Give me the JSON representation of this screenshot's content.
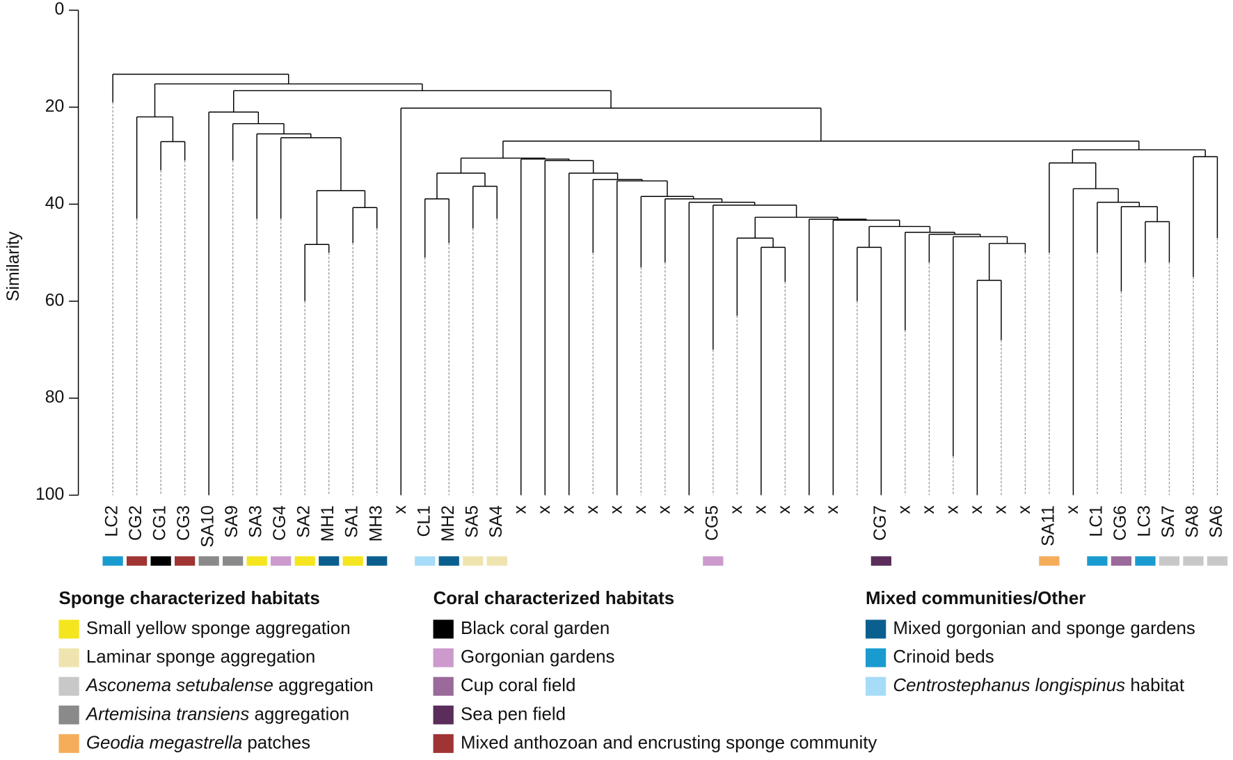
{
  "chart_data": {
    "type": "dendrogram",
    "ylabel": "Similarity",
    "ylim": [
      0,
      100
    ],
    "yticks": [
      0,
      20,
      40,
      60,
      80,
      100
    ],
    "y_reversed": true,
    "leaves": [
      {
        "label": "LC2",
        "color": "#1a9bd0",
        "solid_to": 19
      },
      {
        "label": "CG2",
        "color": "#a03434",
        "solid_to": 43
      },
      {
        "label": "CG1",
        "color": "#000000",
        "solid_to": 33
      },
      {
        "label": "CG3",
        "color": "#a03434",
        "solid_to": 31
      },
      {
        "label": "SA10",
        "color": "#8a8a8a",
        "solid_to": 100
      },
      {
        "label": "SA9",
        "color": "#8a8a8a",
        "solid_to": 31
      },
      {
        "label": "SA3",
        "color": "#f5e51f",
        "solid_to": 43
      },
      {
        "label": "CG4",
        "color": "#cc9acc",
        "solid_to": 43
      },
      {
        "label": "SA2",
        "color": "#f5e51f",
        "solid_to": 60
      },
      {
        "label": "MH1",
        "color": "#0b5f8f",
        "solid_to": 50
      },
      {
        "label": "SA1",
        "color": "#f5e51f",
        "solid_to": 48
      },
      {
        "label": "MH3",
        "color": "#0b5f8f",
        "solid_to": 45
      },
      {
        "label": "x",
        "solid_to": 100
      },
      {
        "label": "CL1",
        "color": "#a6dcf7",
        "solid_to": 51
      },
      {
        "label": "MH2",
        "color": "#0b5f8f",
        "solid_to": 48
      },
      {
        "label": "SA5",
        "color": "#efe4b0",
        "solid_to": 45
      },
      {
        "label": "SA4",
        "color": "#efe4b0",
        "solid_to": 43
      },
      {
        "label": "x",
        "solid_to": 100
      },
      {
        "label": "x",
        "solid_to": 100
      },
      {
        "label": "x",
        "solid_to": 100
      },
      {
        "label": "x",
        "solid_to": 50
      },
      {
        "label": "x",
        "solid_to": 100
      },
      {
        "label": "x",
        "solid_to": 53
      },
      {
        "label": "x",
        "solid_to": 52
      },
      {
        "label": "x",
        "solid_to": 100
      },
      {
        "label": "CG5",
        "color": "#cc9acc",
        "solid_to": 70
      },
      {
        "label": "x",
        "solid_to": 63
      },
      {
        "label": "x",
        "solid_to": 100
      },
      {
        "label": "x",
        "solid_to": 56
      },
      {
        "label": "x",
        "solid_to": 100
      },
      {
        "label": "x",
        "solid_to": 100
      },
      {
        "label": null,
        "solid_to": 60
      },
      {
        "label": "CG7",
        "color": "#5a2d5a",
        "solid_to": 100
      },
      {
        "label": "x",
        "solid_to": 66
      },
      {
        "label": "x",
        "solid_to": 52
      },
      {
        "label": "x",
        "solid_to": 92
      },
      {
        "label": "x",
        "solid_to": 100
      },
      {
        "label": "x",
        "solid_to": 68
      },
      {
        "label": "x",
        "solid_to": 50
      },
      {
        "label": "SA11",
        "color": "#f5ad5c",
        "solid_to": 50
      },
      {
        "label": "x",
        "solid_to": 100
      },
      {
        "label": "LC1",
        "color": "#1a9bd0",
        "solid_to": 50
      },
      {
        "label": "CG6",
        "color": "#9a6a9a",
        "solid_to": 58
      },
      {
        "label": "LC3",
        "color": "#1a9bd0",
        "solid_to": 52
      },
      {
        "label": "SA7",
        "color": "#c8c8c8",
        "solid_to": 52
      },
      {
        "label": "SA8",
        "color": "#c8c8c8",
        "solid_to": 55
      },
      {
        "label": "SA6",
        "color": "#c8c8c8",
        "solid_to": 47
      }
    ],
    "merges": [
      [
        2,
        3,
        27.1
      ],
      [
        1,
        47,
        22.0
      ],
      [
        8,
        9,
        48.3
      ],
      [
        10,
        11,
        40.7
      ],
      [
        49,
        50,
        37.2
      ],
      [
        7,
        51,
        26.3
      ],
      [
        6,
        52,
        25.5
      ],
      [
        5,
        53,
        23.4
      ],
      [
        4,
        54,
        21.0
      ],
      [
        13,
        14,
        38.9
      ],
      [
        15,
        16,
        36.3
      ],
      [
        56,
        57,
        33.6
      ],
      [
        36,
        37,
        55.7
      ],
      [
        59,
        38,
        48.1
      ],
      [
        35,
        60,
        46.7
      ],
      [
        34,
        61,
        46.2
      ],
      [
        33,
        62,
        45.8
      ],
      [
        31,
        32,
        48.9
      ],
      [
        64,
        63,
        44.6
      ],
      [
        30,
        65,
        43.3
      ],
      [
        29,
        66,
        43.1
      ],
      [
        27,
        28,
        48.9
      ],
      [
        26,
        68,
        47.0
      ],
      [
        69,
        67,
        42.7
      ],
      [
        25,
        70,
        40.2
      ],
      [
        24,
        71,
        39.6
      ],
      [
        23,
        72,
        38.9
      ],
      [
        22,
        73,
        38.4
      ],
      [
        21,
        74,
        35.2
      ],
      [
        20,
        75,
        34.9
      ],
      [
        19,
        76,
        33.6
      ],
      [
        18,
        77,
        31.0
      ],
      [
        17,
        78,
        30.7
      ],
      [
        58,
        79,
        30.5
      ],
      [
        43,
        44,
        43.6
      ],
      [
        42,
        81,
        40.5
      ],
      [
        41,
        82,
        39.6
      ],
      [
        40,
        83,
        36.8
      ],
      [
        39,
        84,
        31.5
      ],
      [
        45,
        46,
        30.2
      ],
      [
        85,
        86,
        28.8
      ],
      [
        80,
        87,
        27.0
      ],
      [
        12,
        88,
        20.2
      ],
      [
        55,
        89,
        16.6
      ],
      [
        48,
        90,
        15.2
      ],
      [
        0,
        91,
        13.2
      ]
    ],
    "legend": [
      {
        "title": "Sponge characterized habitats",
        "items": [
          {
            "color": "#f5e51f",
            "label": [
              {
                "text": "Small yellow sponge aggregation"
              }
            ]
          },
          {
            "color": "#efe4b0",
            "label": [
              {
                "text": "Laminar sponge aggregation"
              }
            ]
          },
          {
            "color": "#c8c8c8",
            "label": [
              {
                "text": "Asconema setubalense",
                "italic": true
              },
              {
                "text": " aggregation"
              }
            ]
          },
          {
            "color": "#8a8a8a",
            "label": [
              {
                "text": "Artemisina transiens",
                "italic": true
              },
              {
                "text": " aggregation"
              }
            ]
          },
          {
            "color": "#f5ad5c",
            "label": [
              {
                "text": "Geodia megastrella",
                "italic": true
              },
              {
                "text": " patches"
              }
            ]
          }
        ]
      },
      {
        "title": "Coral characterized habitats",
        "items": [
          {
            "color": "#000000",
            "label": [
              {
                "text": "Black coral garden"
              }
            ]
          },
          {
            "color": "#cc9acc",
            "label": [
              {
                "text": "Gorgonian gardens"
              }
            ]
          },
          {
            "color": "#9a6a9a",
            "label": [
              {
                "text": "Cup coral field"
              }
            ]
          },
          {
            "color": "#5a2d5a",
            "label": [
              {
                "text": "Sea pen field"
              }
            ]
          },
          {
            "color": "#a03434",
            "label": [
              {
                "text": "Mixed anthozoan and encrusting sponge community"
              }
            ]
          }
        ]
      },
      {
        "title": "Mixed communities/Other",
        "items": [
          {
            "color": "#0b5f8f",
            "label": [
              {
                "text": "Mixed gorgonian and sponge gardens"
              }
            ]
          },
          {
            "color": "#1a9bd0",
            "label": [
              {
                "text": "Crinoid beds"
              }
            ]
          },
          {
            "color": "#a6dcf7",
            "label": [
              {
                "text": "Centrostephanus longispinus",
                "italic": true
              },
              {
                "text": " habitat"
              }
            ]
          }
        ]
      }
    ]
  }
}
